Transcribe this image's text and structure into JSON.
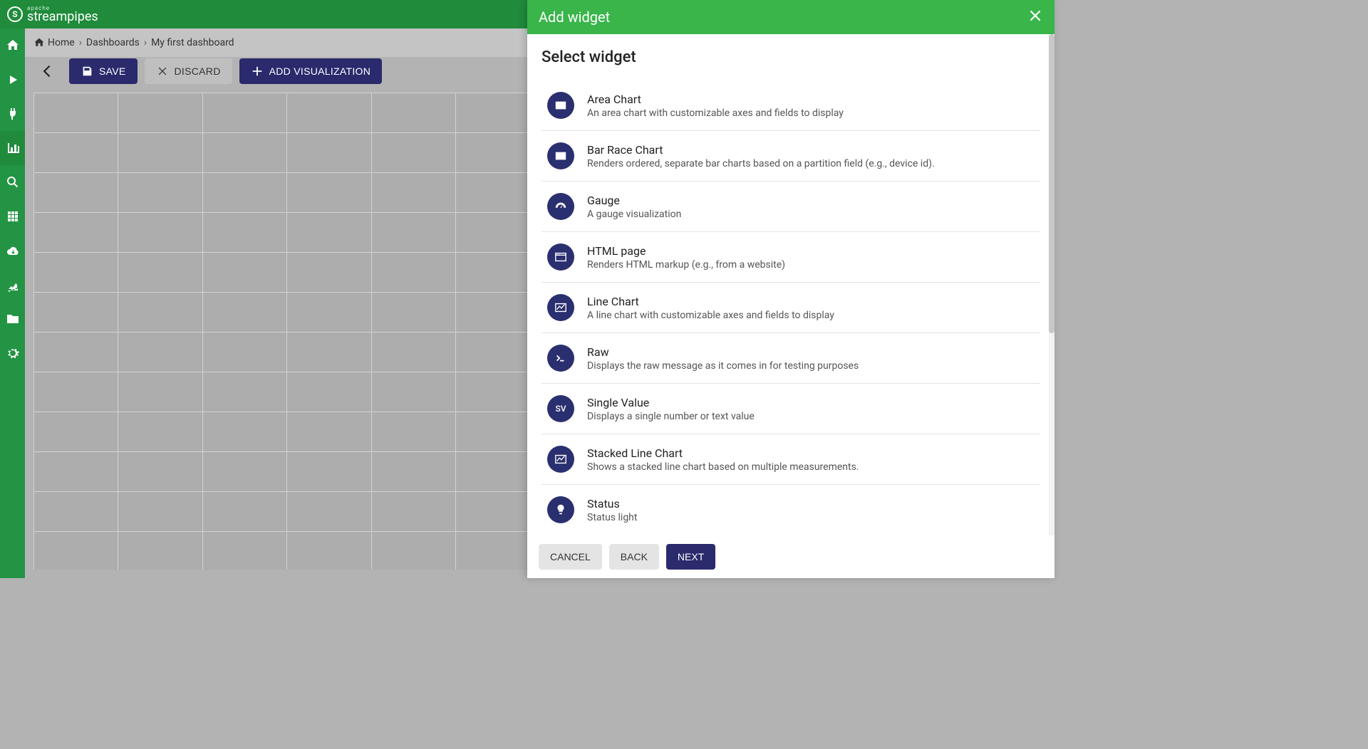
{
  "header": {
    "brand_small": "apache",
    "brand_big": "streampipes"
  },
  "sidebar": {
    "items": [
      {
        "name": "home",
        "active": false
      },
      {
        "name": "play",
        "active": false
      },
      {
        "name": "plug",
        "active": false
      },
      {
        "name": "chart",
        "active": true
      },
      {
        "name": "search",
        "active": false
      },
      {
        "name": "grid",
        "active": false
      },
      {
        "name": "cloud-down",
        "active": false
      },
      {
        "name": "robot-arm",
        "active": false
      },
      {
        "name": "folder",
        "active": false
      },
      {
        "name": "gear",
        "active": false
      }
    ]
  },
  "breadcrumb": {
    "home": "Home",
    "dashboards": "Dashboards",
    "current": "My first dashboard"
  },
  "toolbar": {
    "save": "SAVE",
    "discard": "DISCARD",
    "add_viz": "ADD VISUALIZATION"
  },
  "panel": {
    "title": "Add widget",
    "section_title": "Select widget",
    "widgets": [
      {
        "icon": "area",
        "title": "Area Chart",
        "desc": "An area chart with customizable axes and fields to display"
      },
      {
        "icon": "bar",
        "title": "Bar Race Chart",
        "desc": "Renders ordered, separate bar charts based on a partition field (e.g., device id)."
      },
      {
        "icon": "gauge",
        "title": "Gauge",
        "desc": "A gauge visualization"
      },
      {
        "icon": "html",
        "title": "HTML page",
        "desc": "Renders HTML markup (e.g., from a website)"
      },
      {
        "icon": "line",
        "title": "Line Chart",
        "desc": "A line chart with customizable axes and fields to display"
      },
      {
        "icon": "raw",
        "title": "Raw",
        "desc": "Displays the raw message as it comes in for testing purposes"
      },
      {
        "icon": "sv",
        "title": "Single Value",
        "desc": "Displays a single number or text value"
      },
      {
        "icon": "stacked",
        "title": "Stacked Line Chart",
        "desc": "Shows a stacked line chart based on multiple measurements."
      },
      {
        "icon": "status",
        "title": "Status",
        "desc": "Status light"
      }
    ],
    "buttons": {
      "cancel": "CANCEL",
      "back": "BACK",
      "next": "NEXT"
    }
  },
  "style": {
    "accent": "#2a2a6c",
    "green_dark": "#1f8b3b",
    "green": "#239444",
    "green_panel": "#39b54a",
    "icon_circle": "#2a2f70"
  }
}
